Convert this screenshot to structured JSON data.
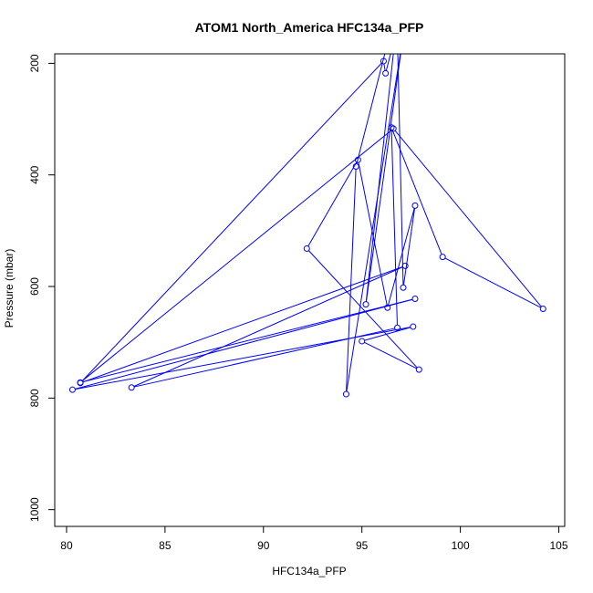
{
  "chart_data": {
    "type": "scatter",
    "title": "ATOM1 North_America HFC134a_PFP",
    "xlabel": "HFC134a_PFP",
    "ylabel": "Pressure (mbar)",
    "xlim": [
      79.4,
      105.3
    ],
    "ylim": [
      1030,
      183
    ],
    "y_reversed": true,
    "x_ticks": [
      80,
      85,
      90,
      95,
      100,
      105
    ],
    "y_ticks": [
      200,
      400,
      600,
      800,
      1000
    ],
    "grid": false,
    "legend": "none",
    "colors": {
      "series": "#0000ff",
      "axes": "#000000"
    },
    "series": [
      {
        "connected": true,
        "points": [
          [
            97.5,
            150
          ],
          [
            96.8,
            150
          ],
          [
            97.1,
            602
          ],
          [
            97.7,
            455
          ],
          [
            96.3,
            638
          ],
          [
            94.8,
            373
          ],
          [
            92.2,
            532
          ],
          [
            97.9,
            749
          ],
          [
            95.0,
            698
          ],
          [
            97.6,
            672
          ],
          [
            80.3,
            785
          ],
          [
            97.7,
            622
          ],
          [
            80.7,
            772
          ],
          [
            96.6,
            317
          ],
          [
            104.2,
            640
          ],
          [
            99.1,
            547
          ],
          [
            96.5,
            315
          ],
          [
            96.8,
            674
          ],
          [
            83.3,
            781
          ],
          [
            97.2,
            563
          ],
          [
            80.7,
            773
          ],
          [
            96.1,
            196
          ],
          [
            96.2,
            218
          ],
          [
            96.7,
            150
          ],
          [
            95.2,
            632
          ],
          [
            97.1,
            150
          ],
          [
            94.2,
            793
          ],
          [
            94.7,
            385
          ],
          [
            96.4,
            150
          ]
        ]
      }
    ]
  }
}
